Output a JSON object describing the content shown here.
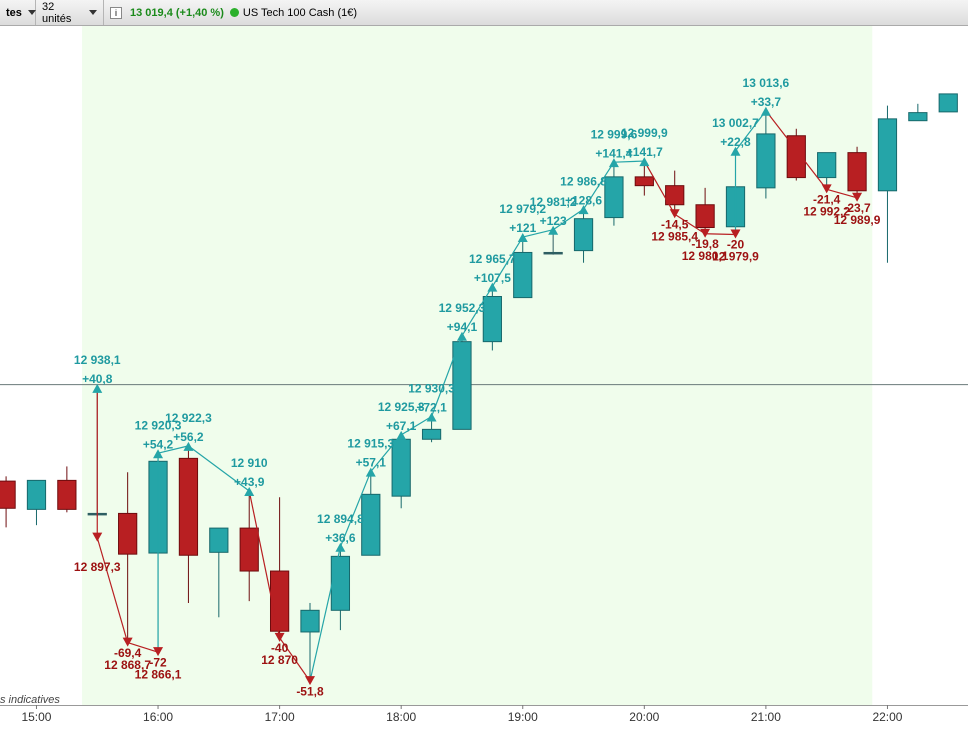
{
  "header": {
    "interval_label": "tes",
    "units": "32 unités",
    "price": "13 019,4 (+1,40 %)",
    "instrument": "US Tech 100 Cash (1€)"
  },
  "chart_data": {
    "type": "candlestick",
    "open": [
      12912.7,
      12905.0,
      12912.9,
      12903.9,
      12903.9,
      12893.1,
      12918.9,
      12893.3,
      12899.9,
      12888.2,
      12871.6,
      12877.5,
      12892.5,
      12908.6,
      12924.1,
      12926.8,
      12950.7,
      12962.7,
      12975.0,
      12975.5,
      12984.5,
      12995.6,
      12993.2,
      12988.0,
      12982.0,
      12992.6,
      13006.8,
      12995.4,
      13002.2,
      12991.8,
      13010.9,
      13013.3
    ],
    "high": [
      12914.0,
      12912.9,
      12916.7,
      12938.1,
      12915.1,
      12920.3,
      12922.3,
      12899.9,
      12910,
      12908.3,
      12879.5,
      12894.8,
      12915.3,
      12925.3,
      12930.3,
      12952.3,
      12965.7,
      12979.2,
      12981.2,
      12986.8,
      12999.6,
      12999.9,
      12997.3,
      12992.6,
      13002.7,
      13013.6,
      13008.7,
      13002.2,
      13003.8,
      13015.0,
      13015.5,
      13018.2
    ],
    "low": [
      12900.1,
      12900.7,
      12904.2,
      12903.1,
      12868.7,
      12866.1,
      12879.5,
      12875.6,
      12880.0,
      12870,
      12858.2,
      12872.1,
      12892.5,
      12905.3,
      12923.3,
      12926.8,
      12948.3,
      12962.7,
      12974.4,
      12972.2,
      12982.3,
      12990.5,
      12985.4,
      12980.1,
      12979.9,
      12989.7,
      12994.6,
      12992.2,
      12989.9,
      12972.2,
      13010.9,
      13013.3
    ],
    "close": [
      12905.3,
      12912.9,
      12905.0,
      12903.9,
      12892.8,
      12918.1,
      12892.5,
      12899.9,
      12888.2,
      12871.8,
      12877.5,
      12892.2,
      12909.1,
      12924.1,
      12926.8,
      12950.7,
      12963.0,
      12975.0,
      12975.0,
      12984.2,
      12995.6,
      12993.2,
      12988.0,
      12981.8,
      12992.9,
      13007.3,
      12995.4,
      13002.2,
      12991.8,
      13011.4,
      13013.1,
      13018.2
    ],
    "colors": {
      "up": "#25a5a8",
      "down": "#b81f22",
      "flat": "#2f5e63",
      "up_label": "#1f9aa0",
      "down_label": "#9c1111"
    },
    "xlim": [
      -0.2,
      31.65
    ],
    "ylim": [
      12851.7,
      13036.7
    ],
    "xticks": [
      {
        "value": 1,
        "label": "15:00"
      },
      {
        "value": 5,
        "label": "16:00"
      },
      {
        "value": 9,
        "label": "17:00"
      },
      {
        "value": 13,
        "label": "18:00"
      },
      {
        "value": 17,
        "label": "19:00"
      },
      {
        "value": 21,
        "label": "20:00"
      },
      {
        "value": 25,
        "label": "21:00"
      },
      {
        "value": 29,
        "label": "22:00"
      }
    ],
    "hline": 12939.0,
    "zigzag": {
      "index": [
        3,
        3,
        4,
        5,
        5,
        6,
        8,
        9,
        10,
        11,
        12,
        13,
        14,
        15,
        16,
        17,
        18,
        19,
        20,
        21,
        22,
        23,
        24,
        24,
        25,
        27,
        28
      ],
      "values": [
        12938.1,
        12897.3,
        12868.7,
        12866.1,
        12920.3,
        12922.3,
        12910,
        12870,
        12858.2,
        12894.8,
        12915.3,
        12925.3,
        12930.3,
        12952.3,
        12965.7,
        12979.2,
        12981.2,
        12986.8,
        12999.6,
        12999.9,
        12985.4,
        12980.1,
        12979.9,
        13002.7,
        13013.6,
        12992.2,
        12989.9
      ],
      "value_labels": [
        "12 938,1",
        "12 897,3",
        "12 868,7",
        "12 866,1",
        "12 920,3",
        "12 922,3",
        "12 910",
        "12 870",
        null,
        "12 894,8",
        "12 915,3",
        "12 925,3",
        "12 930,3",
        "12 952,3",
        "12 965,7",
        "12 979,2",
        "12 981,2",
        "12 986,8",
        "12 999,6",
        "12 999,9",
        "12 985,4",
        "12 980,1",
        "12 979,9",
        "13 002,7",
        "13 013,6",
        "12 992,2",
        "12 989,9"
      ],
      "changes": [
        40.8,
        null,
        -69.4,
        -72,
        54.2,
        56.2,
        43.9,
        -40,
        -51.8,
        36.6,
        57.1,
        67.1,
        72.1,
        94.1,
        107.5,
        121,
        123,
        128.6,
        141.4,
        141.7,
        -14.5,
        -19.8,
        -20,
        22.8,
        33.7,
        -21.4,
        -23.7
      ],
      "change_labels": [
        "+40,8",
        null,
        "-69,4",
        "-72",
        "+54,2",
        "+56,2",
        "+43,9",
        "-40",
        "-51,8",
        "+36,6",
        "+57,1",
        "+67,1",
        "+72,1",
        "+94,1",
        "+107,5",
        "+121",
        "+123",
        "+128,6",
        "+141,4",
        "+141,7",
        "-14,5",
        "-19,8",
        "-20",
        "+22,8",
        "+33,7",
        "-21,4",
        "-23,7"
      ]
    },
    "note": "s indicatives"
  }
}
